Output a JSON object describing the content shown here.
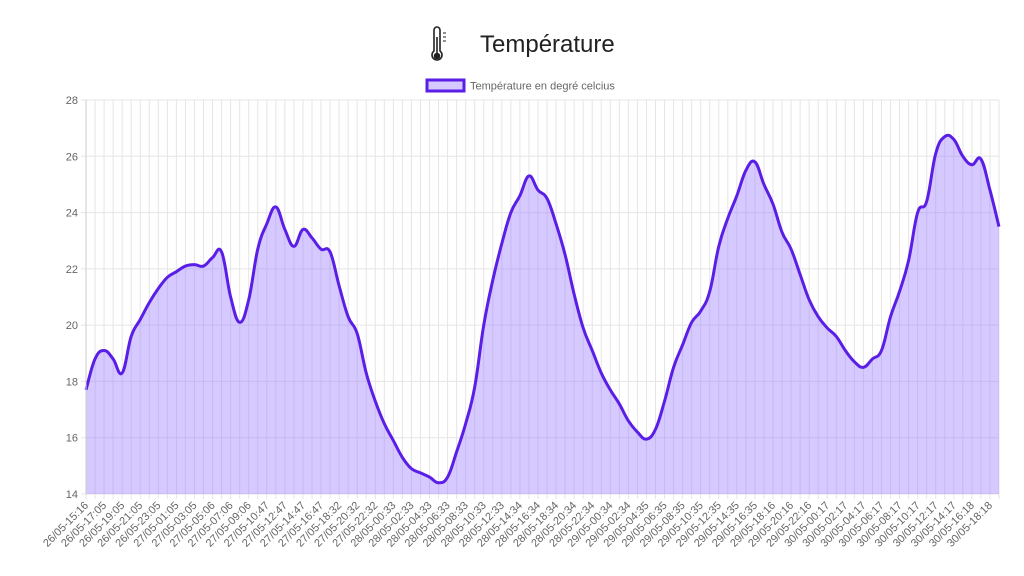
{
  "chart_data": {
    "type": "line",
    "title": "Température",
    "categories": [
      "26/05-15:16",
      null,
      "26/05-17:05",
      null,
      "26/05-19:05",
      null,
      "26/05-21:05",
      null,
      "26/05-23:05",
      null,
      "27/05-01:05",
      null,
      "27/05-03:05",
      null,
      "27/05-05:06",
      null,
      "27/05-07:06",
      null,
      "27/05-09:06",
      null,
      "27/05-10:47",
      null,
      "27/05-12:47",
      null,
      "27/05-14:47",
      null,
      "27/05-16:47",
      null,
      "27/05-18:32",
      null,
      "27/05-20:32",
      null,
      "27/05-22:32",
      null,
      "28/05-00:33",
      null,
      "28/05-02:33",
      null,
      "28/05-04:33",
      null,
      "28/05-06:33",
      null,
      "28/05-08:33",
      null,
      "28/05-10:33",
      null,
      "28/05-12:33",
      null,
      "28/05-14:34",
      null,
      "28/05-16:34",
      null,
      "28/05-18:34",
      null,
      "28/05-20:34",
      null,
      "28/05-22:34",
      null,
      "29/05-00:34",
      null,
      "29/05-02:34",
      null,
      "29/05-04:35",
      null,
      "29/05-06:35",
      null,
      "29/05-08:35",
      null,
      "29/05-10:35",
      null,
      "29/05-12:35",
      null,
      "29/05-14:35",
      null,
      "29/05-16:35",
      null,
      "29/05-18:16",
      null,
      "29/05-20:16",
      null,
      "29/05-22:16",
      null,
      "30/05-00:17",
      null,
      "30/05-02:17",
      null,
      "30/05-04:17",
      null,
      "30/05-06:17",
      null,
      "30/05-08:17",
      null,
      "30/05-10:17",
      null,
      "30/05-12:17",
      null,
      "30/05-14:17",
      null,
      "30/05-16:18",
      null,
      "30/05-18:18",
      null
    ],
    "series": [
      {
        "name": "Température en degré celcius",
        "color": "#5a1ee6",
        "fill": "rgba(150,120,255,0.4)",
        "values": [
          17.7,
          18.8,
          19.1,
          18.8,
          18.3,
          19.6,
          20.2,
          20.8,
          21.3,
          21.7,
          21.9,
          22.1,
          22.15,
          22.1,
          22.4,
          22.6,
          21.0,
          20.1,
          20.9,
          22.7,
          23.6,
          24.2,
          23.4,
          22.8,
          23.4,
          23.1,
          22.7,
          22.6,
          21.4,
          20.3,
          19.7,
          18.3,
          17.3,
          16.5,
          15.9,
          15.3,
          14.9,
          14.75,
          14.6,
          14.4,
          14.6,
          15.5,
          16.5,
          17.8,
          20.0,
          21.6,
          22.9,
          24.0,
          24.6,
          25.3,
          24.8,
          24.5,
          23.6,
          22.5,
          21.1,
          19.9,
          19.1,
          18.3,
          17.7,
          17.2,
          16.6,
          16.2,
          15.95,
          16.3,
          17.3,
          18.5,
          19.3,
          20.1,
          20.5,
          21.2,
          22.8,
          23.8,
          24.6,
          25.5,
          25.8,
          25.0,
          24.3,
          23.3,
          22.7,
          21.8,
          20.9,
          20.3,
          19.9,
          19.6,
          19.1,
          18.7,
          18.5,
          18.8,
          19.1,
          20.3,
          21.2,
          22.3,
          24.0,
          24.4,
          26.1,
          26.7,
          26.6,
          26.0,
          25.7,
          25.9,
          24.8,
          23.5
        ]
      }
    ],
    "ylim": [
      14,
      28
    ],
    "yticks": [
      14,
      16,
      18,
      20,
      22,
      24,
      26,
      28
    ],
    "grid": true,
    "legend": "top"
  }
}
